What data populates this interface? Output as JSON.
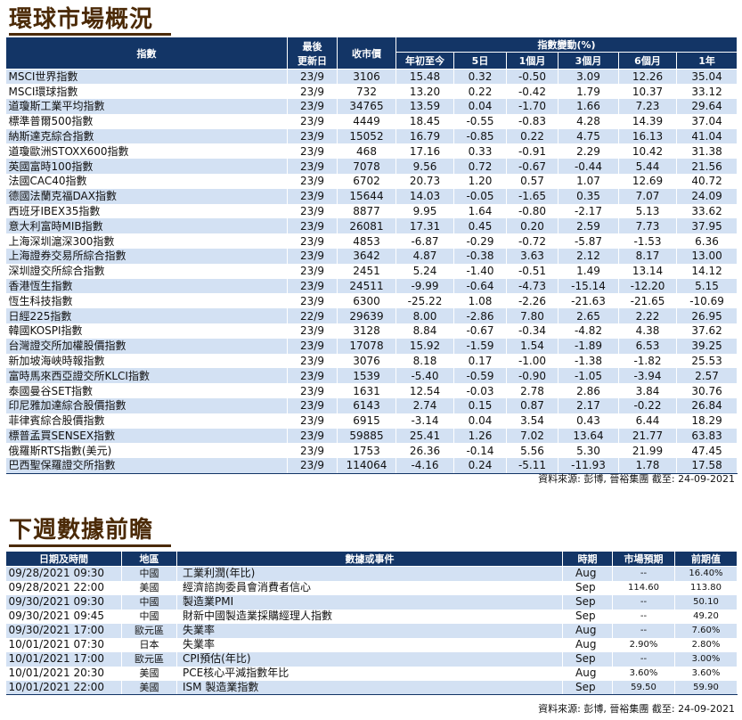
{
  "market": {
    "title": "環球市場概況",
    "headers": {
      "index": "指數",
      "last_update_l1": "最後",
      "last_update_l2": "更新日",
      "close": "收市價",
      "change_group": "指數變動(%)",
      "ytd": "年初至今",
      "d5": "5日",
      "m1": "1個月",
      "m3": "3個月",
      "m6": "6個月",
      "y1": "1年"
    },
    "rows": [
      {
        "name": "MSCI世界指數",
        "date": "23/9",
        "close": "3106",
        "ytd": "15.48",
        "d5": "0.32",
        "m1": "-0.50",
        "m3": "3.09",
        "m6": "12.26",
        "y1": "35.04"
      },
      {
        "name": "MSCI環球指數",
        "date": "23/9",
        "close": "732",
        "ytd": "13.20",
        "d5": "0.22",
        "m1": "-0.42",
        "m3": "1.79",
        "m6": "10.37",
        "y1": "33.12"
      },
      {
        "name": "道瓊斯工業平均指數",
        "date": "23/9",
        "close": "34765",
        "ytd": "13.59",
        "d5": "0.04",
        "m1": "-1.70",
        "m3": "1.66",
        "m6": "7.23",
        "y1": "29.64"
      },
      {
        "name": "標準普爾500指數",
        "date": "23/9",
        "close": "4449",
        "ytd": "18.45",
        "d5": "-0.55",
        "m1": "-0.83",
        "m3": "4.28",
        "m6": "14.39",
        "y1": "37.04"
      },
      {
        "name": "納斯達克綜合指數",
        "date": "23/9",
        "close": "15052",
        "ytd": "16.79",
        "d5": "-0.85",
        "m1": "0.22",
        "m3": "4.75",
        "m6": "16.13",
        "y1": "41.04"
      },
      {
        "name": "道瓊歐洲STOXX600指數",
        "date": "23/9",
        "close": "468",
        "ytd": "17.16",
        "d5": "0.33",
        "m1": "-0.91",
        "m3": "2.29",
        "m6": "10.42",
        "y1": "31.38"
      },
      {
        "name": "英國富時100指數",
        "date": "23/9",
        "close": "7078",
        "ytd": "9.56",
        "d5": "0.72",
        "m1": "-0.67",
        "m3": "-0.44",
        "m6": "5.44",
        "y1": "21.56"
      },
      {
        "name": "法國CAC40指數",
        "date": "23/9",
        "close": "6702",
        "ytd": "20.73",
        "d5": "1.20",
        "m1": "0.57",
        "m3": "1.07",
        "m6": "12.69",
        "y1": "40.72"
      },
      {
        "name": "德國法蘭克福DAX指數",
        "date": "23/9",
        "close": "15644",
        "ytd": "14.03",
        "d5": "-0.05",
        "m1": "-1.65",
        "m3": "0.35",
        "m6": "7.07",
        "y1": "24.09"
      },
      {
        "name": "西班牙IBEX35指數",
        "date": "23/9",
        "close": "8877",
        "ytd": "9.95",
        "d5": "1.64",
        "m1": "-0.80",
        "m3": "-2.17",
        "m6": "5.13",
        "y1": "33.62"
      },
      {
        "name": "意大利富時MIB指數",
        "date": "23/9",
        "close": "26081",
        "ytd": "17.31",
        "d5": "0.45",
        "m1": "0.20",
        "m3": "2.59",
        "m6": "7.73",
        "y1": "37.95"
      },
      {
        "name": "上海深圳滬深300指數",
        "date": "23/9",
        "close": "4853",
        "ytd": "-6.87",
        "d5": "-0.29",
        "m1": "-0.72",
        "m3": "-5.87",
        "m6": "-1.53",
        "y1": "6.36"
      },
      {
        "name": "上海證券交易所綜合指數",
        "date": "23/9",
        "close": "3642",
        "ytd": "4.87",
        "d5": "-0.38",
        "m1": "3.63",
        "m3": "2.12",
        "m6": "8.17",
        "y1": "13.00"
      },
      {
        "name": "深圳證交所綜合指數",
        "date": "23/9",
        "close": "2451",
        "ytd": "5.24",
        "d5": "-1.40",
        "m1": "-0.51",
        "m3": "1.49",
        "m6": "13.14",
        "y1": "14.12"
      },
      {
        "name": "香港恆生指數",
        "date": "23/9",
        "close": "24511",
        "ytd": "-9.99",
        "d5": "-0.64",
        "m1": "-4.73",
        "m3": "-15.14",
        "m6": "-12.20",
        "y1": "5.15"
      },
      {
        "name": "恆生科技指數",
        "date": "23/9",
        "close": "6300",
        "ytd": "-25.22",
        "d5": "1.08",
        "m1": "-2.26",
        "m3": "-21.63",
        "m6": "-21.65",
        "y1": "-10.69"
      },
      {
        "name": "日經225指數",
        "date": "22/9",
        "close": "29639",
        "ytd": "8.00",
        "d5": "-2.86",
        "m1": "7.80",
        "m3": "2.65",
        "m6": "2.22",
        "y1": "26.95"
      },
      {
        "name": "韓國KOSPI指數",
        "date": "23/9",
        "close": "3128",
        "ytd": "8.84",
        "d5": "-0.67",
        "m1": "-0.34",
        "m3": "-4.82",
        "m6": "4.38",
        "y1": "37.62"
      },
      {
        "name": "台灣證交所加權股價指數",
        "date": "23/9",
        "close": "17078",
        "ytd": "15.92",
        "d5": "-1.59",
        "m1": "1.54",
        "m3": "-1.89",
        "m6": "6.53",
        "y1": "39.25"
      },
      {
        "name": "新加坡海峽時報指數",
        "date": "23/9",
        "close": "3076",
        "ytd": "8.18",
        "d5": "0.17",
        "m1": "-1.00",
        "m3": "-1.38",
        "m6": "-1.82",
        "y1": "25.53"
      },
      {
        "name": "富時馬來西亞證交所KLCI指數",
        "date": "23/9",
        "close": "1539",
        "ytd": "-5.40",
        "d5": "-0.59",
        "m1": "-0.90",
        "m3": "-1.05",
        "m6": "-3.94",
        "y1": "2.57"
      },
      {
        "name": "泰國曼谷SET指數",
        "date": "23/9",
        "close": "1631",
        "ytd": "12.54",
        "d5": "-0.03",
        "m1": "2.78",
        "m3": "2.86",
        "m6": "3.84",
        "y1": "30.76"
      },
      {
        "name": "印尼雅加達綜合股價指數",
        "date": "23/9",
        "close": "6143",
        "ytd": "2.74",
        "d5": "0.15",
        "m1": "0.87",
        "m3": "2.17",
        "m6": "-0.22",
        "y1": "26.84"
      },
      {
        "name": "菲律賓綜合股價指數",
        "date": "23/9",
        "close": "6915",
        "ytd": "-3.14",
        "d5": "0.04",
        "m1": "3.54",
        "m3": "0.43",
        "m6": "6.44",
        "y1": "18.29"
      },
      {
        "name": "標普孟買SENSEX指數",
        "date": "23/9",
        "close": "59885",
        "ytd": "25.41",
        "d5": "1.26",
        "m1": "7.02",
        "m3": "13.64",
        "m6": "21.77",
        "y1": "63.83"
      },
      {
        "name": "俄羅斯RTS指數(美元)",
        "date": "23/9",
        "close": "1753",
        "ytd": "26.36",
        "d5": "-0.14",
        "m1": "5.56",
        "m3": "5.30",
        "m6": "21.99",
        "y1": "47.45"
      },
      {
        "name": "巴西聖保羅證交所指數",
        "date": "23/9",
        "close": "114064",
        "ytd": "-4.16",
        "d5": "0.24",
        "m1": "-5.11",
        "m3": "-11.93",
        "m6": "1.78",
        "y1": "17.58"
      }
    ],
    "source": "資料來源: 彭博, 晉裕集團 截至: 24-09-2021"
  },
  "calendar": {
    "title": "下週數據前瞻",
    "headers": {
      "datetime": "日期及時間",
      "region": "地區",
      "event": "數據或事件",
      "period": "時期",
      "forecast": "市場預期",
      "previous": "前期值"
    },
    "rows": [
      {
        "datetime": "09/28/2021 09:30",
        "region": "中國",
        "event": "工業利潤(年比)",
        "period": "Aug",
        "forecast": "--",
        "previous": "16.40%"
      },
      {
        "datetime": "09/28/2021 22:00",
        "region": "美國",
        "event": "經濟諮詢委員會消費者信心",
        "period": "Sep",
        "forecast": "114.60",
        "previous": "113.80"
      },
      {
        "datetime": "09/30/2021 09:30",
        "region": "中國",
        "event": "製造業PMI",
        "period": "Sep",
        "forecast": "--",
        "previous": "50.10"
      },
      {
        "datetime": "09/30/2021 09:45",
        "region": "中國",
        "event": "財新中國製造業採購經理人指數",
        "period": "Sep",
        "forecast": "--",
        "previous": "49.20"
      },
      {
        "datetime": "09/30/2021 17:00",
        "region": "歐元區",
        "event": "失業率",
        "period": "Aug",
        "forecast": "--",
        "previous": "7.60%"
      },
      {
        "datetime": "10/01/2021 07:30",
        "region": "日本",
        "event": "失業率",
        "period": "Aug",
        "forecast": "2.90%",
        "previous": "2.80%"
      },
      {
        "datetime": "10/01/2021 17:00",
        "region": "歐元區",
        "event": "CPI預估(年比)",
        "period": "Sep",
        "forecast": "--",
        "previous": "3.00%"
      },
      {
        "datetime": "10/01/2021 20:30",
        "region": "美國",
        "event": "PCE核心平減指數年比",
        "period": "Aug",
        "forecast": "3.60%",
        "previous": "3.60%"
      },
      {
        "datetime": "10/01/2021 22:00",
        "region": "美國",
        "event": "ISM 製造業指數",
        "period": "Sep",
        "forecast": "59.50",
        "previous": "59.90"
      }
    ],
    "source": "資料來源: 彭博, 晉裕集團 截至: 24-09-2021"
  }
}
